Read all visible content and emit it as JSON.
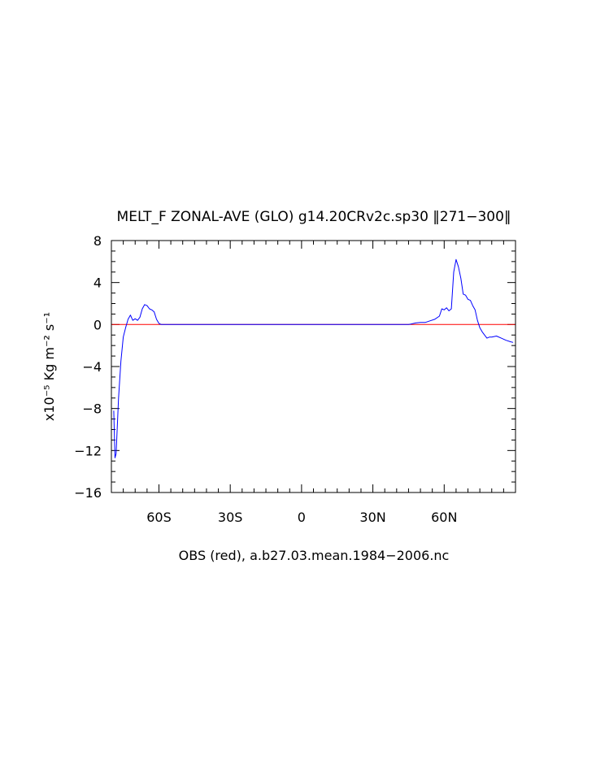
{
  "chart_data": {
    "type": "line",
    "title": "MELT_F ZONAL-AVE (GLO) g14.20CRv2c.sp30 ‖271−300‖",
    "xlabel": "OBS (red), a.b27.03.mean.1984−2006.nc",
    "ylabel": "x10⁻⁵ Kg m⁻² s⁻¹",
    "xlim": [
      -80,
      90
    ],
    "ylim": [
      -16,
      8
    ],
    "x_ticks": [
      {
        "value": -60,
        "label": "60S"
      },
      {
        "value": -30,
        "label": "30S"
      },
      {
        "value": 0,
        "label": "0"
      },
      {
        "value": 30,
        "label": "30N"
      },
      {
        "value": 60,
        "label": "60N"
      }
    ],
    "y_ticks": [
      {
        "value": 8,
        "label": "8"
      },
      {
        "value": 4,
        "label": "4"
      },
      {
        "value": 0,
        "label": "0"
      },
      {
        "value": -4,
        "label": "−4"
      },
      {
        "value": -8,
        "label": "−8"
      },
      {
        "value": -12,
        "label": "−12"
      },
      {
        "value": -16,
        "label": "−16"
      }
    ],
    "series": [
      {
        "color": "#0000ff",
        "points": [
          [
            -79,
            -8.2
          ],
          [
            -78.5,
            -12.7
          ],
          [
            -78,
            -12.3
          ],
          [
            -77,
            -7.0
          ],
          [
            -76,
            -3.5
          ],
          [
            -75,
            -1.2
          ],
          [
            -74,
            -0.3
          ],
          [
            -73,
            0.5
          ],
          [
            -72,
            0.9
          ],
          [
            -71,
            0.4
          ],
          [
            -70,
            0.55
          ],
          [
            -69,
            0.4
          ],
          [
            -68,
            0.7
          ],
          [
            -67,
            1.5
          ],
          [
            -66,
            1.9
          ],
          [
            -65,
            1.8
          ],
          [
            -64,
            1.5
          ],
          [
            -63,
            1.4
          ],
          [
            -62,
            1.2
          ],
          [
            -61,
            0.5
          ],
          [
            -60,
            0.1
          ],
          [
            -59,
            0.0
          ],
          [
            -55,
            0.0
          ],
          [
            45,
            0.0
          ],
          [
            46,
            0.05
          ],
          [
            48,
            0.15
          ],
          [
            50,
            0.2
          ],
          [
            52,
            0.2
          ],
          [
            54,
            0.35
          ],
          [
            56,
            0.5
          ],
          [
            58,
            0.8
          ],
          [
            59,
            1.5
          ],
          [
            60,
            1.4
          ],
          [
            61,
            1.6
          ],
          [
            62,
            1.3
          ],
          [
            63,
            1.5
          ],
          [
            64,
            5.0
          ],
          [
            65,
            6.2
          ],
          [
            66,
            5.5
          ],
          [
            67,
            4.4
          ],
          [
            68,
            2.9
          ],
          [
            69,
            2.8
          ],
          [
            70,
            2.4
          ],
          [
            71,
            2.3
          ],
          [
            72,
            1.8
          ],
          [
            73,
            1.4
          ],
          [
            74,
            0.4
          ],
          [
            75,
            -0.3
          ],
          [
            76,
            -0.7
          ],
          [
            77,
            -1.0
          ],
          [
            78,
            -1.3
          ],
          [
            79,
            -1.2
          ],
          [
            80,
            -1.2
          ],
          [
            82,
            -1.1
          ],
          [
            84,
            -1.3
          ],
          [
            86,
            -1.5
          ],
          [
            88,
            -1.65
          ],
          [
            89,
            -1.7
          ]
        ]
      },
      {
        "color": "#ff0000",
        "points": [
          [
            -80,
            0
          ],
          [
            90,
            0
          ]
        ]
      }
    ],
    "grid": false
  }
}
